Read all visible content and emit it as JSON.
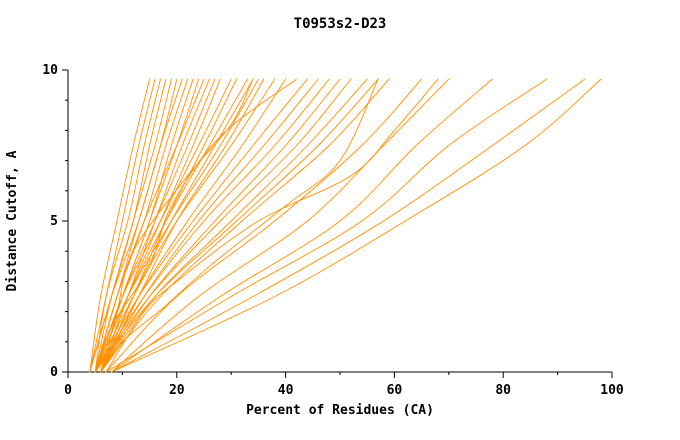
{
  "title": "T0953s2-D23",
  "chart_data": {
    "type": "line",
    "title": "T0953s2-D23",
    "xlabel": "Percent of Residues (CA)",
    "ylabel": "Distance Cutoff, A",
    "xlim": [
      0,
      100
    ],
    "ylim": [
      0,
      10
    ],
    "xticks": [
      0,
      20,
      40,
      60,
      80,
      100
    ],
    "yticks": [
      0,
      5,
      10
    ],
    "x_minor_step": 10,
    "y_minor_step": 1,
    "grid": false,
    "legend": "none",
    "line_color": "#ff9100",
    "axis_color": "#000000",
    "series": [
      {
        "points": [
          [
            4,
            0
          ],
          [
            6,
            2.5
          ],
          [
            9,
            5
          ],
          [
            12,
            7.5
          ],
          [
            15,
            9.7
          ]
        ]
      },
      {
        "points": [
          [
            4,
            0
          ],
          [
            7,
            2.5
          ],
          [
            10,
            5
          ],
          [
            13,
            7.5
          ],
          [
            16,
            9.7
          ]
        ]
      },
      {
        "points": [
          [
            5,
            0
          ],
          [
            7,
            2.5
          ],
          [
            11,
            5
          ],
          [
            14,
            7.5
          ],
          [
            17,
            9.7
          ]
        ]
      },
      {
        "points": [
          [
            4,
            0
          ],
          [
            8,
            2.5
          ],
          [
            12,
            5
          ],
          [
            15,
            7.5
          ],
          [
            18,
            9.7
          ]
        ]
      },
      {
        "points": [
          [
            5,
            0
          ],
          [
            8,
            2.5
          ],
          [
            12,
            5
          ],
          [
            16,
            7.5
          ],
          [
            19,
            9.7
          ]
        ]
      },
      {
        "points": [
          [
            5,
            0
          ],
          [
            9,
            2.5
          ],
          [
            13,
            5
          ],
          [
            17,
            7.5
          ],
          [
            20,
            9.7
          ]
        ]
      },
      {
        "points": [
          [
            4,
            0
          ],
          [
            8,
            2.5
          ],
          [
            13,
            5
          ],
          [
            17,
            7.5
          ],
          [
            21,
            9.7
          ]
        ]
      },
      {
        "points": [
          [
            5,
            0
          ],
          [
            9,
            2.5
          ],
          [
            14,
            5
          ],
          [
            18,
            7.5
          ],
          [
            22,
            9.7
          ]
        ]
      },
      {
        "points": [
          [
            6,
            0
          ],
          [
            10,
            2.5
          ],
          [
            15,
            5
          ],
          [
            19,
            7.5
          ],
          [
            23,
            9.7
          ]
        ]
      },
      {
        "points": [
          [
            5,
            0
          ],
          [
            10,
            2.5
          ],
          [
            15,
            5
          ],
          [
            20,
            7.5
          ],
          [
            24,
            9.7
          ]
        ]
      },
      {
        "points": [
          [
            5,
            0
          ],
          [
            9,
            2.5
          ],
          [
            14,
            5
          ],
          [
            20,
            7.5
          ],
          [
            25,
            9.7
          ]
        ]
      },
      {
        "points": [
          [
            6,
            0
          ],
          [
            11,
            2.5
          ],
          [
            16,
            5
          ],
          [
            21,
            7.5
          ],
          [
            26,
            9.7
          ]
        ]
      },
      {
        "points": [
          [
            5,
            0
          ],
          [
            10,
            2.5
          ],
          [
            16,
            5
          ],
          [
            22,
            7.5
          ],
          [
            27,
            9.7
          ]
        ]
      },
      {
        "points": [
          [
            6,
            0
          ],
          [
            11,
            2.5
          ],
          [
            17,
            5
          ],
          [
            23,
            7.5
          ],
          [
            28,
            9.7
          ]
        ]
      },
      {
        "points": [
          [
            5,
            0
          ],
          [
            10,
            2.5
          ],
          [
            17,
            5
          ],
          [
            24,
            7.5
          ],
          [
            30,
            9.7
          ]
        ]
      },
      {
        "points": [
          [
            6,
            0
          ],
          [
            12,
            2.5
          ],
          [
            18,
            5
          ],
          [
            25,
            7.5
          ],
          [
            31,
            9.7
          ]
        ]
      },
      {
        "points": [
          [
            5,
            0
          ],
          [
            11,
            2.5
          ],
          [
            18,
            5
          ],
          [
            26,
            7.5
          ],
          [
            33,
            9.7
          ]
        ]
      },
      {
        "points": [
          [
            6,
            0
          ],
          [
            12,
            2.5
          ],
          [
            19,
            5
          ],
          [
            27,
            7.5
          ],
          [
            34,
            9.7
          ]
        ]
      },
      {
        "points": [
          [
            5,
            0
          ],
          [
            11,
            2.5
          ],
          [
            19,
            5
          ],
          [
            28,
            7.5
          ],
          [
            35,
            9.7
          ]
        ]
      },
      {
        "points": [
          [
            6,
            0
          ],
          [
            13,
            2.5
          ],
          [
            20,
            5
          ],
          [
            29,
            7.5
          ],
          [
            36,
            9.7
          ]
        ]
      },
      {
        "points": [
          [
            5,
            0
          ],
          [
            12,
            2.5
          ],
          [
            20,
            5
          ],
          [
            30,
            7.5
          ],
          [
            38,
            9.7
          ]
        ]
      },
      {
        "points": [
          [
            6,
            0
          ],
          [
            13,
            2.5
          ],
          [
            22,
            5
          ],
          [
            32,
            7.5
          ],
          [
            40,
            9.7
          ]
        ]
      },
      {
        "points": [
          [
            5,
            0
          ],
          [
            13,
            2.5
          ],
          [
            23,
            5
          ],
          [
            34,
            7.5
          ],
          [
            44,
            9.7
          ]
        ]
      },
      {
        "points": [
          [
            6,
            0
          ],
          [
            14,
            2.5
          ],
          [
            24,
            5
          ],
          [
            36,
            7.5
          ],
          [
            46,
            9.7
          ]
        ]
      },
      {
        "points": [
          [
            5,
            0
          ],
          [
            14,
            2.5
          ],
          [
            25,
            5
          ],
          [
            38,
            7.5
          ],
          [
            48,
            9.7
          ]
        ]
      },
      {
        "points": [
          [
            6,
            0
          ],
          [
            15,
            2.5
          ],
          [
            27,
            5
          ],
          [
            40,
            7.5
          ],
          [
            50,
            9.7
          ]
        ]
      },
      {
        "points": [
          [
            5,
            0
          ],
          [
            15,
            2.5
          ],
          [
            28,
            5
          ],
          [
            42,
            7.5
          ],
          [
            52,
            9.7
          ]
        ]
      },
      {
        "points": [
          [
            6,
            0
          ],
          [
            16,
            2.5
          ],
          [
            30,
            5
          ],
          [
            44,
            7.5
          ],
          [
            55,
            9.7
          ]
        ]
      },
      {
        "points": [
          [
            5,
            0
          ],
          [
            16,
            2.5
          ],
          [
            31,
            5
          ],
          [
            46,
            7.5
          ],
          [
            57,
            9.7
          ]
        ]
      },
      {
        "points": [
          [
            6,
            0
          ],
          [
            17,
            2.5
          ],
          [
            32,
            5
          ],
          [
            48,
            7.5
          ],
          [
            59,
            9.7
          ]
        ]
      },
      {
        "points": [
          [
            7,
            0
          ],
          [
            20,
            2.5
          ],
          [
            38,
            5
          ],
          [
            54,
            7.5
          ],
          [
            65,
            9.7
          ]
        ]
      },
      {
        "points": [
          [
            8,
            0
          ],
          [
            24,
            2.5
          ],
          [
            44,
            5
          ],
          [
            58,
            7.5
          ],
          [
            70,
            9.7
          ]
        ]
      },
      {
        "points": [
          [
            8,
            0
          ],
          [
            28,
            2.5
          ],
          [
            50,
            5
          ],
          [
            64,
            7.5
          ],
          [
            78,
            9.7
          ]
        ]
      },
      {
        "points": [
          [
            7,
            0
          ],
          [
            30,
            2.5
          ],
          [
            54,
            5
          ],
          [
            70,
            7.5
          ],
          [
            88,
            9.7
          ]
        ]
      },
      {
        "points": [
          [
            8,
            0
          ],
          [
            34,
            2.5
          ],
          [
            58,
            5
          ],
          [
            78,
            7.5
          ],
          [
            95,
            9.7
          ]
        ]
      },
      {
        "points": [
          [
            8,
            0
          ],
          [
            38,
            2.5
          ],
          [
            62,
            5
          ],
          [
            84,
            7.5
          ],
          [
            98,
            9.7
          ]
        ]
      },
      {
        "points": [
          [
            6,
            0
          ],
          [
            9,
            2
          ],
          [
            12,
            4
          ],
          [
            22,
            6.5
          ],
          [
            30,
            8.2
          ],
          [
            34,
            9.7
          ]
        ]
      },
      {
        "points": [
          [
            5,
            0
          ],
          [
            8,
            1.5
          ],
          [
            15,
            3.5
          ],
          [
            19,
            5.5
          ],
          [
            28,
            7.8
          ],
          [
            42,
            9.7
          ]
        ]
      },
      {
        "points": [
          [
            7,
            0
          ],
          [
            14,
            2
          ],
          [
            20,
            3
          ],
          [
            35,
            5
          ],
          [
            52,
            6.5
          ],
          [
            60,
            8
          ],
          [
            68,
            9.7
          ]
        ]
      },
      {
        "points": [
          [
            6,
            0
          ],
          [
            10,
            1
          ],
          [
            18,
            2.2
          ],
          [
            26,
            3.5
          ],
          [
            40,
            5.5
          ],
          [
            50,
            7
          ],
          [
            57,
            9.7
          ]
        ]
      }
    ]
  }
}
